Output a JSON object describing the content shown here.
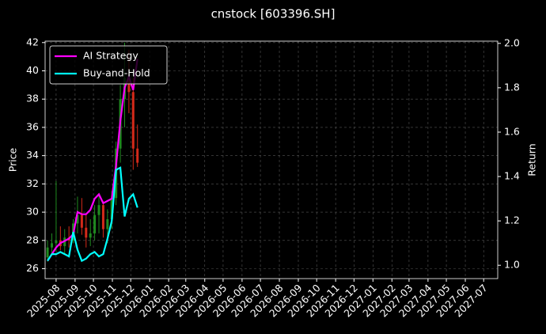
{
  "chart_data": {
    "type": "candlestick",
    "title": "cnstock [603396.SH]",
    "ylabel": "Price",
    "y2label": "Return",
    "x": [
      "2025-07-18",
      "2025-07-25",
      "2025-08-01",
      "2025-08-08",
      "2025-08-15",
      "2025-08-22",
      "2025-08-29",
      "2025-09-05",
      "2025-09-12",
      "2025-09-19",
      "2025-09-26",
      "2025-10-03",
      "2025-10-10",
      "2025-10-17",
      "2025-10-24",
      "2025-10-31",
      "2025-11-07",
      "2025-11-14",
      "2025-11-21",
      "2025-11-28",
      "2025-12-05",
      "2025-12-12"
    ],
    "open": [
      26.8,
      27.5,
      27.8,
      28.0,
      27.6,
      28.2,
      28.0,
      29.2,
      29.8,
      28.9,
      28.2,
      28.5,
      29.8,
      30.5,
      28.8,
      29.5,
      31.0,
      34.5,
      38.0,
      39.5,
      38.5,
      34.5
    ],
    "high": [
      28.0,
      28.5,
      32.2,
      29.0,
      28.8,
      29.0,
      29.5,
      31.1,
      31.0,
      29.8,
      29.5,
      30.5,
      31.2,
      30.8,
      30.2,
      31.5,
      35.0,
      39.0,
      42.0,
      41.5,
      39.5,
      36.2
    ],
    "low": [
      26.5,
      27.0,
      27.2,
      27.3,
      27.0,
      27.5,
      27.8,
      28.5,
      28.4,
      27.5,
      27.6,
      28.0,
      28.5,
      28.2,
      27.8,
      28.8,
      30.5,
      33.5,
      36.0,
      37.0,
      33.0,
      33.2
    ],
    "close": [
      27.5,
      27.8,
      28.0,
      27.6,
      28.2,
      28.0,
      29.2,
      29.8,
      28.9,
      28.2,
      28.5,
      29.8,
      30.5,
      28.8,
      29.5,
      31.0,
      34.5,
      38.0,
      39.5,
      38.5,
      34.5,
      33.5
    ],
    "up_color": "#1f8a1f",
    "down_color": "#d42a1a",
    "series": [
      {
        "name": "AI Strategy",
        "color": "#ff00ff",
        "axis": "y2",
        "values": [
          1.02,
          1.05,
          1.08,
          1.1,
          1.11,
          1.12,
          1.14,
          1.24,
          1.23,
          1.23,
          1.25,
          1.3,
          1.32,
          1.28,
          1.29,
          1.3,
          1.45,
          1.65,
          1.8,
          1.85,
          1.79,
          1.93
        ]
      },
      {
        "name": "Buy-and-Hold",
        "color": "#00ffff",
        "axis": "y2",
        "values": [
          1.02,
          1.05,
          1.05,
          1.06,
          1.05,
          1.04,
          1.15,
          1.07,
          1.02,
          1.03,
          1.05,
          1.06,
          1.04,
          1.05,
          1.12,
          1.2,
          1.43,
          1.44,
          1.22,
          1.3,
          1.32,
          1.26
        ]
      }
    ],
    "xlim": [
      "2025-07-14",
      "2027-07-24"
    ],
    "xticks": [
      "2025-08",
      "2025-09",
      "2025-10",
      "2025-11",
      "2025-12",
      "2026-01",
      "2026-02",
      "2026-03",
      "2026-04",
      "2026-05",
      "2026-06",
      "2026-07",
      "2026-08",
      "2026-09",
      "2026-10",
      "2026-11",
      "2026-12",
      "2027-01",
      "2027-02",
      "2027-03",
      "2027-04",
      "2027-05",
      "2027-06",
      "2027-07"
    ],
    "ylim": [
      25.3,
      42.1
    ],
    "yticks": [
      26,
      28,
      30,
      32,
      34,
      36,
      38,
      40,
      42
    ],
    "y2lim": [
      0.94,
      2.01
    ],
    "y2ticks": [
      {
        "value": 1,
        "label": "1.0"
      },
      1.2,
      1.4,
      1.6,
      1.8,
      {
        "value": 2,
        "label": "2.0"
      }
    ],
    "grid": true,
    "legend": "upper left"
  }
}
